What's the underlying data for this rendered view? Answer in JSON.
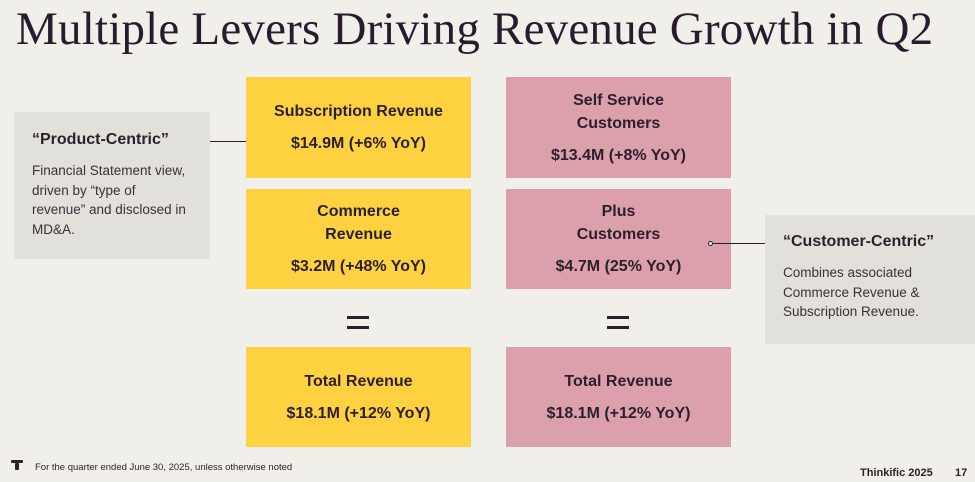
{
  "title": "Multiple Levers Driving Revenue Growth in Q2",
  "product_centric": {
    "heading": "“Product-Centric”",
    "description": "Financial Statement view, driven by “type of revenue” and disclosed in MD&A."
  },
  "customer_centric": {
    "heading": "“Customer-Centric”",
    "description": "Combines associated Commerce Revenue & Subscription Revenue."
  },
  "left_column": {
    "subscription": {
      "label": "Subscription Revenue",
      "value": "$14.9M (+6% YoY)"
    },
    "commerce": {
      "label_line1": "Commerce",
      "label_line2": "Revenue",
      "value": "$3.2M (+48% YoY)"
    },
    "total": {
      "label": "Total Revenue",
      "value": "$18.1M (+12% YoY)"
    }
  },
  "right_column": {
    "self_service": {
      "label_line1": "Self Service",
      "label_line2": "Customers",
      "value": "$13.4M (+8% YoY)"
    },
    "plus": {
      "label_line1": "Plus",
      "label_line2": "Customers",
      "value": "$4.7M (25% YoY)"
    },
    "total": {
      "label": "Total Revenue",
      "value": "$18.1M (+12% YoY)"
    }
  },
  "footer": {
    "footnote": "For the quarter ended June 30, 2025, unless otherwise noted",
    "brand": "Thinkific 2025",
    "page_number": "17"
  },
  "colors": {
    "background": "#f1efea",
    "yellow_card": "#fdd140",
    "pink_card": "#dca0ad",
    "side_box": "#e2e0da",
    "text": "#2b1f2c"
  }
}
